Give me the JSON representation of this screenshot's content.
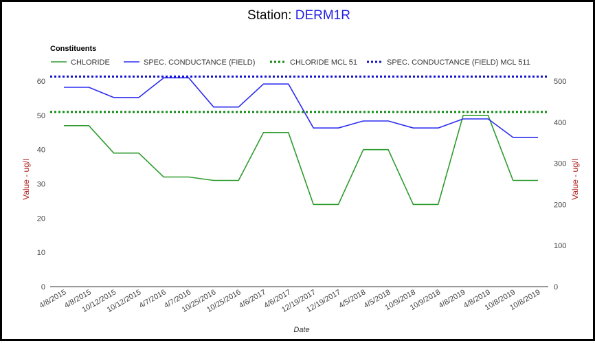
{
  "header": {
    "title_prefix": "Station: ",
    "title_station": "DERM1R"
  },
  "legend": {
    "heading": "Constituents"
  },
  "chart_data": {
    "type": "line",
    "x": [
      "4/8/2015",
      "4/8/2015",
      "10/12/2015",
      "10/12/2015",
      "4/7/2016",
      "4/7/2016",
      "10/25/2016",
      "10/25/2016",
      "4/6/2017",
      "4/6/2017",
      "12/19/2017",
      "12/19/2017",
      "4/5/2018",
      "4/5/2018",
      "10/9/2018",
      "10/9/2018",
      "4/8/2019",
      "4/8/2019",
      "10/8/2019",
      "10/8/2019"
    ],
    "xlabel": "Date",
    "ylabel_left": "Value - ug/l",
    "ylabel_right": "Value - ug/l",
    "y_left": {
      "range": [
        0,
        60
      ],
      "ticks": [
        0,
        10,
        20,
        30,
        40,
        50,
        60
      ]
    },
    "y_right": {
      "range": [
        0,
        500
      ],
      "ticks": [
        0,
        100,
        200,
        300,
        400,
        500
      ]
    },
    "grid": false,
    "legend_position": "top-left",
    "series": [
      {
        "name": "CHLORIDE",
        "axis": "left",
        "style": "solid",
        "color": "#2e9b2e",
        "values": [
          47,
          47,
          39,
          39,
          32,
          32,
          31,
          31,
          45,
          45,
          24,
          24,
          40,
          40,
          24,
          24,
          50,
          50,
          31,
          31
        ]
      },
      {
        "name": "SPEC. CONDUCTANCE (FIELD)",
        "axis": "right",
        "style": "solid",
        "color": "#2b2bf0",
        "values": [
          485,
          485,
          460,
          460,
          508,
          508,
          437,
          437,
          493,
          493,
          386,
          386,
          403,
          403,
          386,
          386,
          408,
          408,
          363,
          363
        ]
      },
      {
        "name": "CHLORIDE MCL 51",
        "axis": "left",
        "style": "dotted",
        "color": "#138a13",
        "value": 51
      },
      {
        "name": "SPEC. CONDUCTANCE (FIELD) MCL 511",
        "axis": "right",
        "style": "dotted",
        "color": "#1010d0",
        "value": 511
      }
    ]
  }
}
